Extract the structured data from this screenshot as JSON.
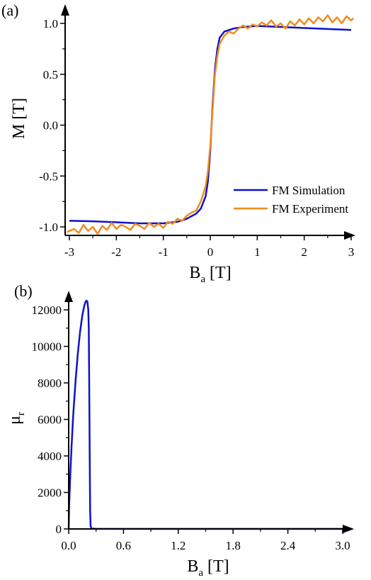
{
  "chart_data": [
    {
      "panel_label": "(a)",
      "type": "line",
      "xlabel_main": "B",
      "xlabel_sub": "a",
      "xlabel_unit": " [T]",
      "ylabel": "M [T]",
      "xlim": [
        -3.1,
        3.1
      ],
      "ylim": [
        -1.1,
        1.1
      ],
      "x_ticks": [
        -3,
        -2,
        -1,
        0,
        1,
        2,
        3
      ],
      "x_tick_labels": [
        "-3",
        "-2",
        "-1",
        "0",
        "1",
        "2",
        "3"
      ],
      "y_ticks": [
        -1.0,
        -0.5,
        0.0,
        0.5,
        1.0
      ],
      "y_tick_labels": [
        "-1.0",
        "-0.5",
        "0.0",
        "0.5",
        "1.0"
      ],
      "legend_position": "lower-right",
      "series": [
        {
          "name": "FM Simulation",
          "color": "#1010cc",
          "x": [
            -3.0,
            -2.5,
            -2.0,
            -1.5,
            -1.0,
            -0.7,
            -0.5,
            -0.3,
            -0.2,
            -0.1,
            -0.05,
            0.0,
            0.05,
            0.1,
            0.15,
            0.2,
            0.3,
            0.5,
            0.7,
            1.0,
            1.5,
            2.0,
            2.5,
            3.0
          ],
          "y": [
            -0.94,
            -0.945,
            -0.955,
            -0.965,
            -0.965,
            -0.95,
            -0.92,
            -0.87,
            -0.82,
            -0.7,
            -0.55,
            -0.25,
            0.2,
            0.55,
            0.75,
            0.86,
            0.92,
            0.95,
            0.965,
            0.975,
            0.965,
            0.955,
            0.945,
            0.935
          ]
        },
        {
          "name": "FM Experiment",
          "color": "#f08c1e",
          "x": [
            -3.05,
            -2.9,
            -2.8,
            -2.7,
            -2.6,
            -2.5,
            -2.4,
            -2.3,
            -2.2,
            -2.1,
            -2.0,
            -1.9,
            -1.8,
            -1.7,
            -1.6,
            -1.5,
            -1.4,
            -1.3,
            -1.2,
            -1.1,
            -1.0,
            -0.9,
            -0.8,
            -0.7,
            -0.6,
            -0.5,
            -0.4,
            -0.3,
            -0.2,
            -0.1,
            -0.05,
            0.0,
            0.05,
            0.1,
            0.15,
            0.2,
            0.3,
            0.4,
            0.5,
            0.6,
            0.7,
            0.8,
            0.9,
            1.0,
            1.1,
            1.2,
            1.3,
            1.4,
            1.5,
            1.6,
            1.7,
            1.8,
            1.9,
            2.0,
            2.1,
            2.2,
            2.3,
            2.4,
            2.5,
            2.6,
            2.7,
            2.8,
            2.9,
            3.0,
            3.05
          ],
          "y": [
            -1.05,
            -1.02,
            -1.06,
            -0.98,
            -1.04,
            -1.0,
            -1.07,
            -0.99,
            -1.03,
            -0.96,
            -1.02,
            -0.98,
            -1.0,
            -1.03,
            -0.97,
            -0.99,
            -1.02,
            -0.96,
            -1.0,
            -0.97,
            -1.01,
            -0.95,
            -0.97,
            -0.92,
            -0.94,
            -0.89,
            -0.86,
            -0.84,
            -0.75,
            -0.6,
            -0.45,
            -0.2,
            0.15,
            0.5,
            0.68,
            0.8,
            0.88,
            0.92,
            0.9,
            0.95,
            0.98,
            0.95,
            0.99,
            0.97,
            1.01,
            0.98,
            1.03,
            0.97,
            1.0,
            0.95,
            1.02,
            0.98,
            1.04,
            0.99,
            1.05,
            1.0,
            1.06,
            1.02,
            1.08,
            1.01,
            1.06,
            1.0,
            1.07,
            1.03,
            1.05
          ]
        }
      ]
    },
    {
      "panel_label": "(b)",
      "type": "line",
      "xlabel_main": "B",
      "xlabel_sub": "a",
      "xlabel_unit": " [T]",
      "ylabel_main": "μ",
      "ylabel_sub": "r",
      "xlim": [
        0.0,
        3.1
      ],
      "ylim": [
        0,
        12500
      ],
      "x_ticks": [
        0.0,
        0.6,
        1.2,
        1.8,
        2.4,
        3.0
      ],
      "x_tick_labels": [
        "0.0",
        "0.6",
        "1.2",
        "1.8",
        "2.4",
        "3.0"
      ],
      "y_ticks": [
        0,
        2000,
        4000,
        6000,
        8000,
        10000,
        12000
      ],
      "y_tick_labels": [
        "0",
        "2000",
        "4000",
        "6000",
        "8000",
        "10000",
        "12000"
      ],
      "series": [
        {
          "color": "#1010cc",
          "x": [
            0.0,
            0.005,
            0.015,
            0.03,
            0.05,
            0.075,
            0.1,
            0.125,
            0.15,
            0.17,
            0.185,
            0.195,
            0.205,
            0.215,
            0.22,
            0.225,
            0.23,
            0.235,
            0.24,
            0.25,
            0.3,
            1.0,
            2.0,
            3.0
          ],
          "y": [
            0,
            1200,
            2600,
            4400,
            6300,
            8100,
            9600,
            10800,
            11700,
            12200,
            12450,
            12500,
            12450,
            12000,
            11000,
            8000,
            4000,
            1000,
            150,
            20,
            10,
            5,
            5,
            5
          ]
        }
      ]
    }
  ]
}
